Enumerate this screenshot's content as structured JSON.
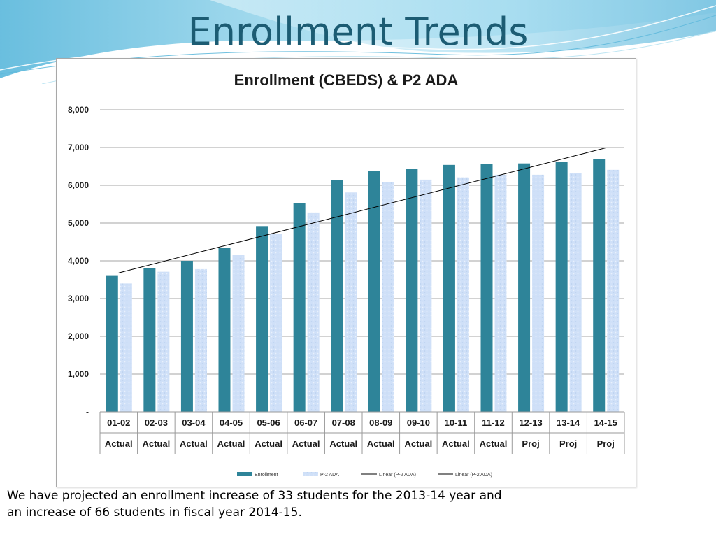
{
  "slide": {
    "title": "Enrollment Trends",
    "caption_line1": "We have projected an enrollment increase of 33 students for the 2013-14 year and",
    "caption_line2": "an increase of 66 students in fiscal year 2014-15."
  },
  "colors": {
    "title": "#1c5c73",
    "enrollment_bar": "#2e8499",
    "ada_bar": "#cfe0f8",
    "trendline": "#000000",
    "gridline": "#888888"
  },
  "chart_data": {
    "type": "bar",
    "title": "Enrollment (CBEDS) & P2 ADA",
    "xlabel": "",
    "ylabel": "",
    "ylim": [
      0,
      8000
    ],
    "yticks": [
      "-",
      "1,000",
      "2,000",
      "3,000",
      "4,000",
      "5,000",
      "6,000",
      "7,000",
      "8,000"
    ],
    "grid": true,
    "legend_position": "bottom",
    "categories": [
      "01-02",
      "02-03",
      "03-04",
      "04-05",
      "05-06",
      "06-07",
      "07-08",
      "08-09",
      "09-10",
      "10-11",
      "11-12",
      "12-13",
      "13-14",
      "14-15"
    ],
    "sublabels": [
      "Actual",
      "Actual",
      "Actual",
      "Actual",
      "Actual",
      "Actual",
      "Actual",
      "Actual",
      "Actual",
      "Actual",
      "Actual",
      "Proj",
      "Proj",
      "Proj"
    ],
    "series": [
      {
        "name": "Enrollment",
        "values": [
          3600,
          3800,
          4000,
          4350,
          4920,
          5530,
          6130,
          6380,
          6440,
          6540,
          6570,
          6580,
          6620,
          6690
        ]
      },
      {
        "name": "P-2 ADA",
        "values": [
          3400,
          3710,
          3780,
          4150,
          4720,
          5280,
          5810,
          6080,
          6150,
          6210,
          6280,
          6280,
          6330,
          6410
        ]
      }
    ],
    "trendline": {
      "name": "Linear (P-2 ADA)",
      "start": 3680,
      "end": 6990
    },
    "legend": [
      "Enrollment",
      "P-2 ADA",
      "Linear (P-2 ADA)",
      "Linear (P-2 ADA)"
    ]
  }
}
